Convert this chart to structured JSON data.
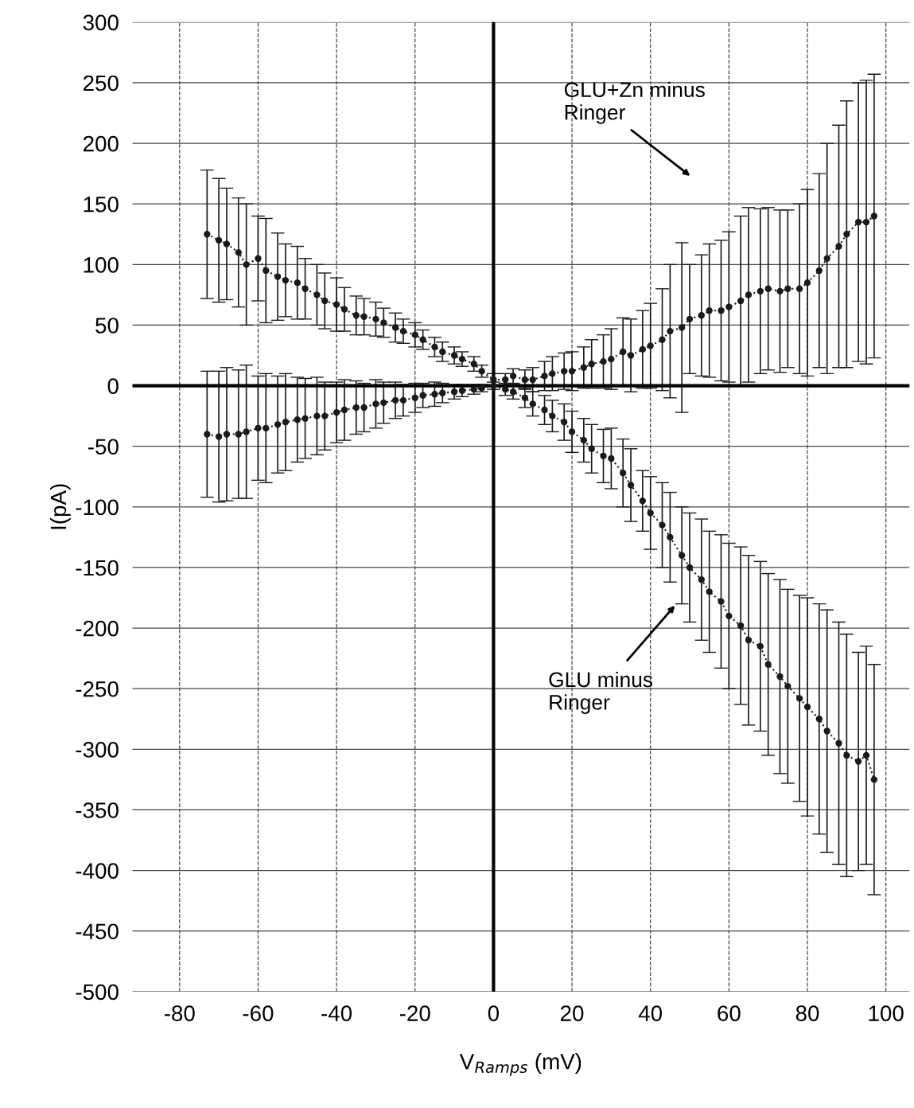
{
  "chart_data": {
    "type": "line",
    "xlabel": "V$_{Ramps}$ (mV)",
    "ylabel": "I(pA)",
    "xlim": [
      -92,
      106
    ],
    "ylim": [
      -500,
      300
    ],
    "xticks": [
      -80,
      -60,
      -40,
      -20,
      0,
      20,
      40,
      60,
      80,
      100
    ],
    "yticks": [
      -500,
      -450,
      -400,
      -350,
      -300,
      -250,
      -200,
      -150,
      -100,
      -50,
      0,
      50,
      100,
      150,
      200,
      250,
      300
    ],
    "grid": true,
    "marker": "circle",
    "line_style": "dotted",
    "series": [
      {
        "color": "#1a1a1a",
        "x": [
          -73,
          -70,
          -68,
          -65,
          -63,
          -60,
          -58,
          -55,
          -53,
          -50,
          -48,
          -45,
          -43,
          -40,
          -38,
          -35,
          -33,
          -30,
          -28,
          -25,
          -23,
          -20,
          -18,
          -15,
          -13,
          -10,
          -8,
          -5,
          -3,
          0,
          3,
          5,
          8,
          10,
          13,
          15,
          18,
          20,
          23,
          25,
          28,
          30,
          33,
          35,
          38,
          40,
          43,
          45,
          48,
          50,
          53,
          55,
          58,
          60,
          63,
          65,
          68,
          70,
          73,
          75,
          78,
          80,
          83,
          85,
          88,
          90,
          93,
          95,
          97
        ],
        "values": [
          125,
          120,
          117,
          110,
          100,
          105,
          95,
          90,
          87,
          85,
          80,
          75,
          70,
          67,
          63,
          58,
          57,
          55,
          52,
          48,
          45,
          42,
          38,
          32,
          28,
          25,
          22,
          18,
          12,
          5,
          5,
          8,
          5,
          5,
          8,
          10,
          12,
          12,
          15,
          18,
          20,
          22,
          28,
          25,
          30,
          33,
          38,
          45,
          48,
          55,
          58,
          62,
          62,
          65,
          70,
          75,
          78,
          80,
          78,
          80,
          80,
          85,
          95,
          105,
          115,
          125,
          135,
          135,
          140
        ],
        "errors": [
          53,
          51,
          46,
          45,
          50,
          35,
          43,
          36,
          30,
          30,
          25,
          25,
          23,
          22,
          18,
          16,
          15,
          14,
          12,
          12,
          10,
          10,
          8,
          8,
          8,
          7,
          6,
          6,
          5,
          5,
          5,
          6,
          8,
          10,
          12,
          14,
          15,
          16,
          17,
          20,
          22,
          25,
          28,
          30,
          32,
          35,
          42,
          55,
          70,
          45,
          50,
          55,
          58,
          62,
          70,
          72,
          68,
          67,
          67,
          65,
          70,
          77,
          80,
          95,
          100,
          110,
          115,
          117,
          117
        ]
      },
      {
        "color": "#1a1a1a",
        "x": [
          -73,
          -70,
          -68,
          -65,
          -63,
          -60,
          -58,
          -55,
          -53,
          -50,
          -48,
          -45,
          -43,
          -40,
          -38,
          -35,
          -33,
          -30,
          -28,
          -25,
          -23,
          -20,
          -18,
          -15,
          -13,
          -10,
          -8,
          -5,
          -3,
          0,
          3,
          5,
          8,
          10,
          13,
          15,
          18,
          20,
          23,
          25,
          28,
          30,
          33,
          35,
          38,
          40,
          43,
          45,
          48,
          50,
          53,
          55,
          58,
          60,
          63,
          65,
          68,
          70,
          73,
          75,
          78,
          80,
          83,
          85,
          88,
          90,
          93,
          95,
          97
        ],
        "values": [
          -40,
          -42,
          -40,
          -40,
          -38,
          -35,
          -35,
          -32,
          -30,
          -28,
          -27,
          -25,
          -25,
          -22,
          -20,
          -18,
          -18,
          -15,
          -14,
          -12,
          -12,
          -10,
          -8,
          -7,
          -6,
          -5,
          -4,
          -3,
          -2,
          0,
          -3,
          -5,
          -10,
          -15,
          -20,
          -25,
          -30,
          -38,
          -45,
          -52,
          -58,
          -60,
          -72,
          -82,
          -95,
          -105,
          -115,
          -125,
          -140,
          -150,
          -160,
          -170,
          -178,
          -190,
          -198,
          -210,
          -215,
          -230,
          -240,
          -248,
          -258,
          -265,
          -275,
          -285,
          -295,
          -305,
          -310,
          -305,
          -325
        ],
        "errors": [
          52,
          54,
          55,
          53,
          55,
          43,
          45,
          40,
          40,
          35,
          33,
          32,
          28,
          25,
          25,
          22,
          20,
          20,
          17,
          15,
          13,
          12,
          10,
          10,
          8,
          6,
          5,
          4,
          3,
          3,
          5,
          6,
          8,
          10,
          12,
          13,
          15,
          17,
          18,
          20,
          22,
          25,
          28,
          30,
          25,
          30,
          35,
          37,
          40,
          45,
          50,
          50,
          55,
          60,
          65,
          70,
          70,
          75,
          80,
          80,
          85,
          90,
          95,
          100,
          100,
          100,
          90,
          90,
          95
        ]
      }
    ],
    "annotations": [
      "GLU+Zn minus\nRinger",
      "GLU minus\nRinger"
    ]
  }
}
